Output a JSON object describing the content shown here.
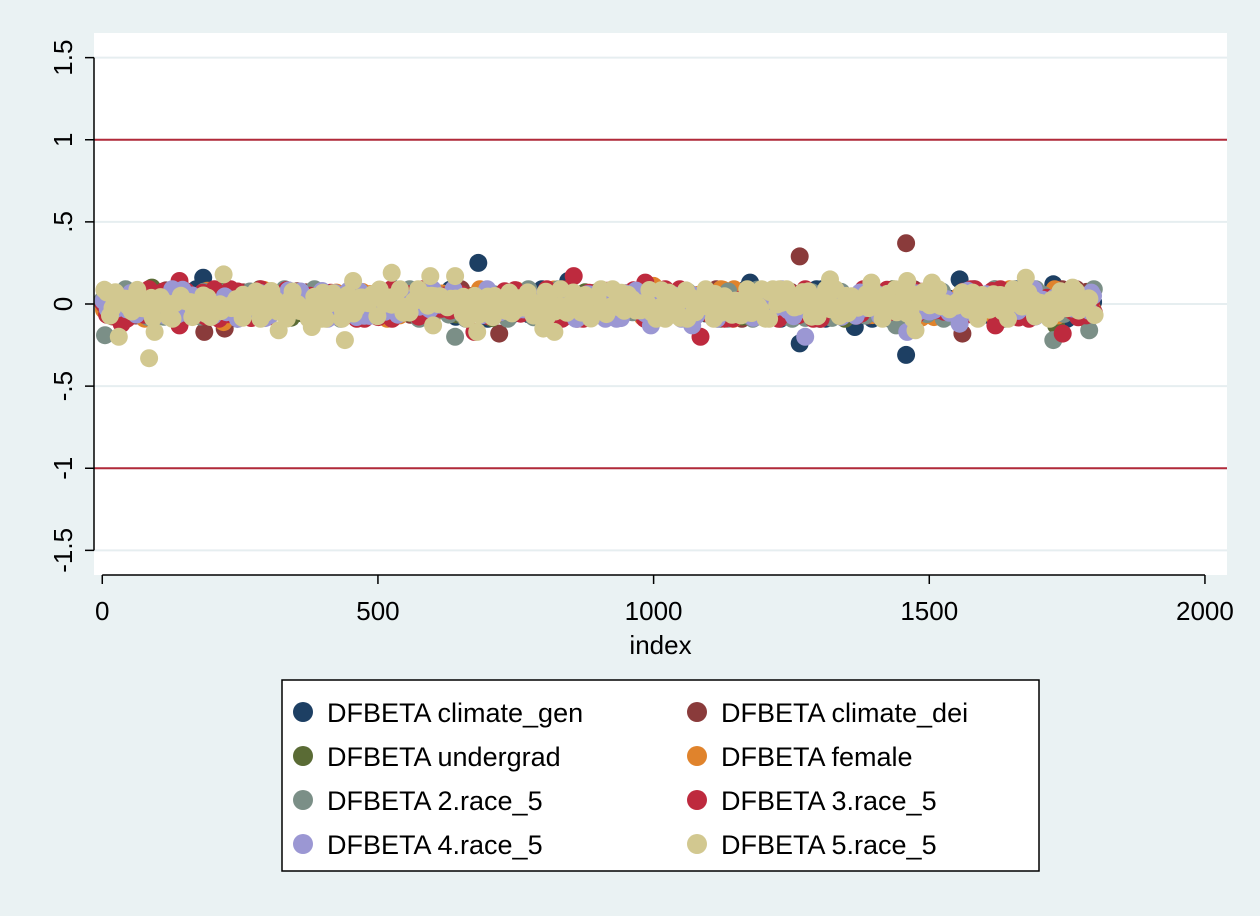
{
  "chart_data": {
    "type": "scatter",
    "title": "",
    "xlabel": "index",
    "ylabel": "",
    "xlim": [
      -15,
      2040
    ],
    "ylim": [
      -1.65,
      1.65
    ],
    "x_ticks": [
      0,
      500,
      1000,
      1500,
      2000
    ],
    "x_tick_labels": [
      "0",
      "500",
      "1000",
      "1500",
      "2000"
    ],
    "y_ticks": [
      -1.5,
      -1,
      -0.5,
      0,
      0.5,
      1,
      1.5
    ],
    "y_tick_labels": [
      "-1.5",
      "-1",
      "-.5",
      "0",
      ".5",
      "1",
      "1.5"
    ],
    "grid": true,
    "reference_lines": [
      {
        "y": 1,
        "color": "#b22a3a"
      },
      {
        "y": -1,
        "color": "#b22a3a"
      }
    ],
    "legend": {
      "placement": "bottom",
      "columns": 2
    },
    "n_obs": 1800,
    "series": [
      {
        "name": "DFBETA climate_gen",
        "color": "#1d3f63",
        "spread": 0.045,
        "outliers": [
          [
            183,
            0.16
          ],
          [
            682,
            0.25
          ],
          [
            845,
            0.14
          ],
          [
            1175,
            0.13
          ],
          [
            1265,
            -0.24
          ],
          [
            1365,
            -0.14
          ],
          [
            1458,
            -0.31
          ],
          [
            1555,
            0.15
          ],
          [
            1725,
            0.12
          ]
        ]
      },
      {
        "name": "DFBETA climate_dei",
        "color": "#8a3b3b",
        "spread": 0.04,
        "outliers": [
          [
            185,
            -0.17
          ],
          [
            222,
            -0.15
          ],
          [
            720,
            -0.18
          ],
          [
            1265,
            0.29
          ],
          [
            1458,
            0.37
          ],
          [
            1560,
            -0.18
          ]
        ]
      },
      {
        "name": "DFBETA undergrad",
        "color": "#5a6b35",
        "spread": 0.04,
        "outliers": [
          [
            90,
            0.1
          ],
          [
            1000,
            -0.1
          ],
          [
            1730,
            -0.13
          ]
        ]
      },
      {
        "name": "DFBETA female",
        "color": "#e0832c",
        "spread": 0.04,
        "outliers": [
          [
            220,
            -0.11
          ],
          [
            685,
            0.09
          ],
          [
            1000,
            0.11
          ],
          [
            1460,
            0.13
          ]
        ]
      },
      {
        "name": "DFBETA 2.race_5",
        "color": "#7b8f87",
        "spread": 0.045,
        "outliers": [
          [
            5,
            -0.19
          ],
          [
            640,
            -0.2
          ],
          [
            1440,
            -0.13
          ],
          [
            1725,
            -0.22
          ],
          [
            1790,
            -0.16
          ],
          [
            1795,
            0.06
          ]
        ]
      },
      {
        "name": "DFBETA 3.race_5",
        "color": "#be2a3e",
        "spread": 0.05,
        "outliers": [
          [
            35,
            -0.12
          ],
          [
            140,
            0.14
          ],
          [
            140,
            -0.13
          ],
          [
            675,
            -0.17
          ],
          [
            855,
            0.17
          ],
          [
            985,
            0.13
          ],
          [
            1085,
            -0.2
          ],
          [
            1620,
            -0.13
          ],
          [
            1742,
            -0.18
          ]
        ]
      },
      {
        "name": "DFBETA 4.race_5",
        "color": "#9b97d3",
        "spread": 0.045,
        "outliers": [
          [
            995,
            -0.13
          ],
          [
            1070,
            -0.13
          ],
          [
            1275,
            -0.2
          ],
          [
            1460,
            -0.17
          ],
          [
            1555,
            -0.12
          ]
        ]
      },
      {
        "name": "DFBETA 5.race_5",
        "color": "#d2c890",
        "spread": 0.055,
        "outliers": [
          [
            30,
            -0.2
          ],
          [
            85,
            -0.33
          ],
          [
            95,
            -0.17
          ],
          [
            220,
            0.18
          ],
          [
            320,
            -0.16
          ],
          [
            380,
            -0.14
          ],
          [
            440,
            -0.22
          ],
          [
            455,
            0.14
          ],
          [
            525,
            0.19
          ],
          [
            595,
            0.17
          ],
          [
            600,
            -0.13
          ],
          [
            640,
            0.17
          ],
          [
            680,
            -0.17
          ],
          [
            800,
            -0.15
          ],
          [
            820,
            -0.17
          ],
          [
            1320,
            0.15
          ],
          [
            1395,
            0.13
          ],
          [
            1460,
            0.14
          ],
          [
            1475,
            -0.16
          ],
          [
            1505,
            0.13
          ],
          [
            1675,
            0.16
          ],
          [
            1760,
            0.1
          ]
        ]
      }
    ]
  }
}
